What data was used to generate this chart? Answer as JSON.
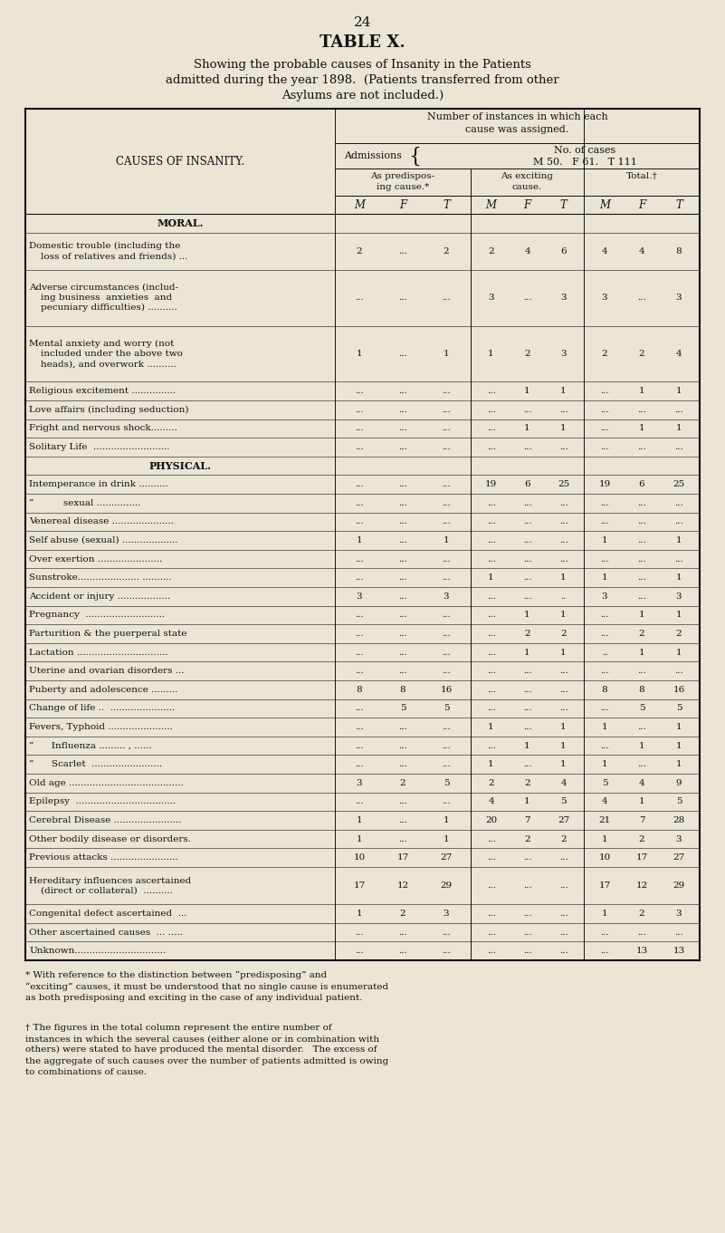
{
  "page_number": "24",
  "table_title": "TABLE X.",
  "subtitle_line1": "Showing the probable causes of Insanity in the Patients",
  "subtitle_line2": "admitted during the year 1898.  (Patients transferred from other",
  "subtitle_line3": "Asylums are not included.)",
  "bg_color": "#EAE5D5",
  "text_color": "#111111",
  "rows": [
    {
      "label": "MORAL.",
      "bold": true,
      "center": true,
      "lines": 1,
      "pre": [
        "",
        "",
        ""
      ],
      "exc": [
        "",
        "",
        ""
      ],
      "tot": [
        "",
        "",
        ""
      ]
    },
    {
      "label": "Domestic trouble (including the\n    loss of relatives and friends) ...",
      "bold": false,
      "center": false,
      "lines": 2,
      "pre": [
        "2",
        "...",
        "2"
      ],
      "exc": [
        "2",
        "4",
        "6"
      ],
      "tot": [
        "4",
        "4",
        "8"
      ]
    },
    {
      "label": "Adverse circumstances (includ-\n    ing business  anxieties  and\n    pecuniary difficulties) ..........",
      "bold": false,
      "center": false,
      "lines": 3,
      "pre": [
        "...",
        "...",
        "..."
      ],
      "exc": [
        "3",
        "...",
        "3"
      ],
      "tot": [
        "3",
        "...",
        "3"
      ]
    },
    {
      "label": "Mental anxiety and worry (not\n    included under the above two\n    heads), and overwork ..........",
      "bold": false,
      "center": false,
      "lines": 3,
      "pre": [
        "1",
        "...",
        "1"
      ],
      "exc": [
        "1",
        "2",
        "3"
      ],
      "tot": [
        "2",
        "2",
        "4"
      ]
    },
    {
      "label": "Religious excitement ...............",
      "bold": false,
      "center": false,
      "lines": 1,
      "pre": [
        "...",
        "...",
        "..."
      ],
      "exc": [
        "...",
        "1",
        "1"
      ],
      "tot": [
        "...",
        "1",
        "1"
      ]
    },
    {
      "label": "Love affairs (including seduction)",
      "bold": false,
      "center": false,
      "lines": 1,
      "pre": [
        "...",
        "...",
        "..."
      ],
      "exc": [
        "...",
        "...",
        "..."
      ],
      "tot": [
        "...",
        "...",
        "..."
      ]
    },
    {
      "label": "Fright and nervous shock.........",
      "bold": false,
      "center": false,
      "lines": 1,
      "pre": [
        "...",
        "...",
        "..."
      ],
      "exc": [
        "...",
        "1",
        "1"
      ],
      "tot": [
        "...",
        "1",
        "1"
      ]
    },
    {
      "label": "Solitary Life  ..........................",
      "bold": false,
      "center": false,
      "lines": 1,
      "pre": [
        "...",
        "...",
        "..."
      ],
      "exc": [
        "...",
        "...",
        "..."
      ],
      "tot": [
        "...",
        "...",
        "..."
      ]
    },
    {
      "label": "PHYSICAL.",
      "bold": true,
      "center": true,
      "lines": 1,
      "pre": [
        "",
        "",
        ""
      ],
      "exc": [
        "",
        "",
        ""
      ],
      "tot": [
        "",
        "",
        ""
      ]
    },
    {
      "label": "Intemperance in drink ..........",
      "bold": false,
      "center": false,
      "lines": 1,
      "pre": [
        "...",
        "...",
        "..."
      ],
      "exc": [
        "19",
        "6",
        "25"
      ],
      "tot": [
        "19",
        "6",
        "25"
      ]
    },
    {
      "label": "”          sexual ...............",
      "bold": false,
      "center": false,
      "lines": 1,
      "pre": [
        "...",
        "...",
        "..."
      ],
      "exc": [
        "...",
        "...",
        "..."
      ],
      "tot": [
        "...",
        "...",
        "..."
      ]
    },
    {
      "label": "Venereal disease .....................",
      "bold": false,
      "center": false,
      "lines": 1,
      "pre": [
        "...",
        "...",
        "..."
      ],
      "exc": [
        "...",
        "...",
        "..."
      ],
      "tot": [
        "...",
        "...",
        "..."
      ]
    },
    {
      "label": "Self abuse (sexual) ...................",
      "bold": false,
      "center": false,
      "lines": 1,
      "pre": [
        "1",
        "...",
        "1"
      ],
      "exc": [
        "...",
        "...",
        "..."
      ],
      "tot": [
        "1",
        "...",
        "1"
      ]
    },
    {
      "label": "Over exertion ......................",
      "bold": false,
      "center": false,
      "lines": 1,
      "pre": [
        "...",
        "...",
        "..."
      ],
      "exc": [
        "...",
        "...",
        "..."
      ],
      "tot": [
        "...",
        "...",
        "..."
      ]
    },
    {
      "label": "Sunstroke..................... ..........",
      "bold": false,
      "center": false,
      "lines": 1,
      "pre": [
        "...",
        "...",
        "..."
      ],
      "exc": [
        "1",
        "...",
        "1"
      ],
      "tot": [
        "1",
        "...",
        "1"
      ]
    },
    {
      "label": "Accident or injury ..................",
      "bold": false,
      "center": false,
      "lines": 1,
      "pre": [
        "3",
        "...",
        "3"
      ],
      "exc": [
        "...",
        "...",
        ".."
      ],
      "tot": [
        "3",
        "...",
        "3"
      ]
    },
    {
      "label": "Pregnancy  ...........................",
      "bold": false,
      "center": false,
      "lines": 1,
      "pre": [
        "...",
        "...",
        "..."
      ],
      "exc": [
        "...",
        "1",
        "1"
      ],
      "tot": [
        "...",
        "1",
        "1"
      ]
    },
    {
      "label": "Parturition & the puerperal state",
      "bold": false,
      "center": false,
      "lines": 1,
      "pre": [
        "...",
        "...",
        "..."
      ],
      "exc": [
        "...",
        "2",
        "2"
      ],
      "tot": [
        "...",
        "2",
        "2"
      ]
    },
    {
      "label": "Lactation ...............................",
      "bold": false,
      "center": false,
      "lines": 1,
      "pre": [
        "...",
        "...",
        "..."
      ],
      "exc": [
        "...",
        "1",
        "1"
      ],
      "tot": [
        "..",
        "1",
        "1"
      ]
    },
    {
      "label": "Uterine and ovarian disorders ...",
      "bold": false,
      "center": false,
      "lines": 1,
      "pre": [
        "...",
        "...",
        "..."
      ],
      "exc": [
        "...",
        "...",
        "..."
      ],
      "tot": [
        "...",
        "...",
        "..."
      ]
    },
    {
      "label": "Puberty and adolescence .........",
      "bold": false,
      "center": false,
      "lines": 1,
      "pre": [
        "8",
        "8",
        "16"
      ],
      "exc": [
        "...",
        "...",
        "..."
      ],
      "tot": [
        "8",
        "8",
        "16"
      ]
    },
    {
      "label": "Change of life ..  ......................",
      "bold": false,
      "center": false,
      "lines": 1,
      "pre": [
        "...",
        "5",
        "5"
      ],
      "exc": [
        "...",
        "...",
        "..."
      ],
      "tot": [
        "...",
        "5",
        "5"
      ]
    },
    {
      "label": "Fevers, Typhoid ......................",
      "bold": false,
      "center": false,
      "lines": 1,
      "pre": [
        "...",
        "...",
        "..."
      ],
      "exc": [
        "1",
        "...",
        "1"
      ],
      "tot": [
        "1",
        "...",
        "1"
      ]
    },
    {
      "label": "”      Influenza ......... , ......",
      "bold": false,
      "center": false,
      "lines": 1,
      "pre": [
        "...",
        "...",
        "..."
      ],
      "exc": [
        "...",
        "1",
        "1"
      ],
      "tot": [
        "...",
        "1",
        "1"
      ]
    },
    {
      "label": "”      Scarlet  ........................",
      "bold": false,
      "center": false,
      "lines": 1,
      "pre": [
        "...",
        "...",
        "..."
      ],
      "exc": [
        "1",
        "...",
        "1"
      ],
      "tot": [
        "1",
        "...",
        "1"
      ]
    },
    {
      "label": "Old age .......................................",
      "bold": false,
      "center": false,
      "lines": 1,
      "pre": [
        "3",
        "2",
        "5"
      ],
      "exc": [
        "2",
        "2",
        "4"
      ],
      "tot": [
        "5",
        "4",
        "9"
      ]
    },
    {
      "label": "Epilepsy  ..................................",
      "bold": false,
      "center": false,
      "lines": 1,
      "pre": [
        "...",
        "...",
        "..."
      ],
      "exc": [
        "4",
        "1",
        "5"
      ],
      "tot": [
        "4",
        "1",
        "5"
      ]
    },
    {
      "label": "Cerebral Disease .......................",
      "bold": false,
      "center": false,
      "lines": 1,
      "pre": [
        "1",
        "...",
        "1"
      ],
      "exc": [
        "20",
        "7",
        "27"
      ],
      "tot": [
        "21",
        "7",
        "28"
      ]
    },
    {
      "label": "Other bodily disease or disorders.",
      "bold": false,
      "center": false,
      "lines": 1,
      "pre": [
        "1",
        "...",
        "1"
      ],
      "exc": [
        "...",
        "2",
        "2"
      ],
      "tot": [
        "1",
        "2",
        "3"
      ]
    },
    {
      "label": "Previous attacks .......................",
      "bold": false,
      "center": false,
      "lines": 1,
      "pre": [
        "10",
        "17",
        "27"
      ],
      "exc": [
        "...",
        "...",
        "..."
      ],
      "tot": [
        "10",
        "17",
        "27"
      ]
    },
    {
      "label": "Hereditary influences ascertained\n    (direct or collateral)  ..........",
      "bold": false,
      "center": false,
      "lines": 2,
      "pre": [
        "17",
        "12",
        "29"
      ],
      "exc": [
        "...",
        "...",
        "..."
      ],
      "tot": [
        "17",
        "12",
        "29"
      ]
    },
    {
      "label": "Congenital defect ascertained  ...",
      "bold": false,
      "center": false,
      "lines": 1,
      "pre": [
        "1",
        "2",
        "3"
      ],
      "exc": [
        "...",
        "...",
        "..."
      ],
      "tot": [
        "1",
        "2",
        "3"
      ]
    },
    {
      "label": "Other ascertained causes  ... .....",
      "bold": false,
      "center": false,
      "lines": 1,
      "pre": [
        "...",
        "...",
        "..."
      ],
      "exc": [
        "...",
        "...",
        "..."
      ],
      "tot": [
        "...",
        "...",
        "..."
      ]
    },
    {
      "label": "Unknown...............................",
      "bold": false,
      "center": false,
      "lines": 1,
      "pre": [
        "...",
        "...",
        "..."
      ],
      "exc": [
        "...",
        "...",
        "..."
      ],
      "tot": [
        "...",
        "13",
        "13"
      ]
    }
  ],
  "footnote1": "* With reference to the distinction between “predisposing” and\n“exciting” causes, it must be understood that no single cause is enumerated\nas both predisposing and exciting in the case of any individual patient.",
  "footnote2": "† The figures in the total column represent the entire number of\ninstances in which the several causes (either alone or in combination with\nothers) were stated to have produced the mental disorder.   The excess of\nthe aggregate of such causes over the number of patients admitted is owing\nto combinations of cause."
}
